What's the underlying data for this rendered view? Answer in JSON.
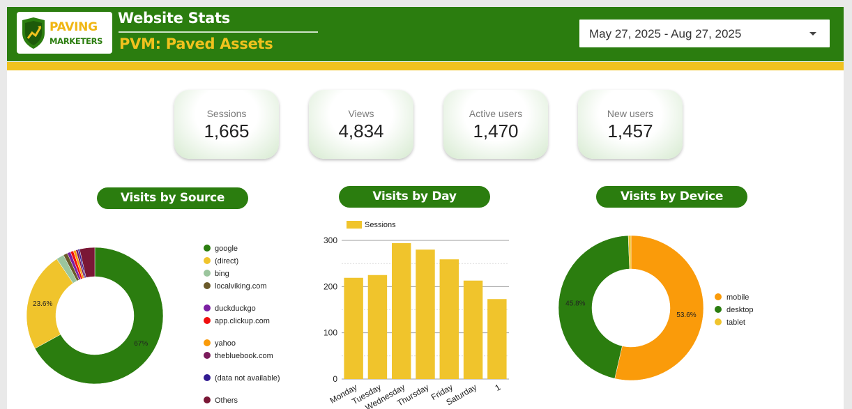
{
  "header": {
    "logo": {
      "line1": "PAVING",
      "line2": "MARKETERS"
    },
    "title": "Website Stats",
    "subtitle": "PVM: Paved Assets",
    "date_range": "May 27, 2025 - Aug 27, 2025"
  },
  "colors": {
    "brand_green": "#2b7d0f",
    "brand_gold": "#f0c21e",
    "orange": "#fa9b0a"
  },
  "kpis": [
    {
      "label": "Sessions",
      "value": "1,665"
    },
    {
      "label": "Views",
      "value": "4,834"
    },
    {
      "label": "Active users",
      "value": "1,470"
    },
    {
      "label": "New users",
      "value": "1,457"
    }
  ],
  "chart_data": [
    {
      "type": "pie",
      "title": "Visits by Source",
      "legend": "right",
      "slices": [
        {
          "label": "google",
          "value": 67.0,
          "color": "#2b7d0f",
          "data_label": "67%"
        },
        {
          "label": "(direct)",
          "value": 23.6,
          "color": "#f0c42c",
          "data_label": "23.6%"
        },
        {
          "label": "bing",
          "value": 1.8,
          "color": "#9bc59d",
          "data_label": ""
        },
        {
          "label": "localviking.com",
          "value": 1.0,
          "color": "#6b5a2a",
          "data_label": ""
        },
        {
          "label": "duckduckgo",
          "value": 0.8,
          "color": "#7b1fa2",
          "data_label": ""
        },
        {
          "label": "app.clickup.com",
          "value": 0.7,
          "color": "#f00e0e",
          "data_label": ""
        },
        {
          "label": "yahoo",
          "value": 0.6,
          "color": "#fa9b0a",
          "data_label": ""
        },
        {
          "label": "thebluebook.com",
          "value": 0.5,
          "color": "#7b1c5c",
          "data_label": ""
        },
        {
          "label": "(data not available)",
          "value": 0.4,
          "color": "#311b92",
          "data_label": ""
        },
        {
          "label": "Others",
          "value": 3.6,
          "color": "#7a1736",
          "data_label": ""
        }
      ]
    },
    {
      "type": "bar",
      "title": "Visits by Day",
      "legend": "top-left",
      "categories": [
        "Monday",
        "Tuesday",
        "Wednesday",
        "Thursday",
        "Friday",
        "Saturday",
        "1"
      ],
      "series": [
        {
          "name": "Sessions",
          "color": "#f0c42c",
          "values": [
            219,
            225,
            294,
            280,
            259,
            213,
            173
          ]
        }
      ],
      "ylim": [
        0,
        300
      ],
      "yticks": [
        "0",
        "100",
        "200",
        "300"
      ],
      "grid": true
    },
    {
      "type": "pie",
      "title": "Visits by Device",
      "legend": "right",
      "slices": [
        {
          "label": "mobile",
          "value": 53.6,
          "color": "#fa9b0a",
          "data_label": "53.6%"
        },
        {
          "label": "desktop",
          "value": 45.8,
          "color": "#2b7d0f",
          "data_label": "45.8%"
        },
        {
          "label": "tablet",
          "value": 0.6,
          "color": "#f0c42c",
          "data_label": ""
        }
      ]
    }
  ]
}
